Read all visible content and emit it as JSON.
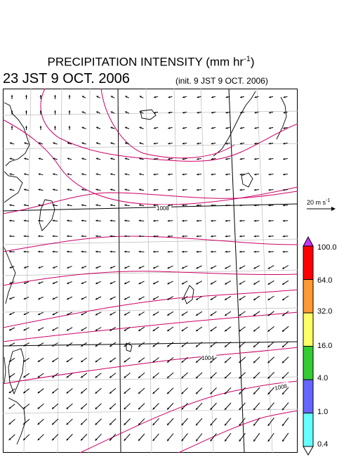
{
  "title_main": "PRECIPITATION INTENSITY (mm hr",
  "title_exp": "-1",
  "title_close": ")",
  "valid_time": "23 JST 9 OCT. 2006",
  "init_time": "(init. 9 JST 9 OCT. 2006)",
  "wind_scale_label": "20 m s",
  "wind_scale_exp": "-1",
  "legend": {
    "labels": [
      "100.0",
      "64.0",
      "32.0",
      "16.0",
      "4.0",
      "1.0",
      "0.4"
    ],
    "colors": [
      "#ff0000",
      "#ff9933",
      "#ffff66",
      "#33cc33",
      "#6666ff",
      "#66ffff"
    ],
    "over_color": "#cc33ff"
  },
  "isobar_labels": [
    "1008",
    "1004",
    "1008"
  ]
}
